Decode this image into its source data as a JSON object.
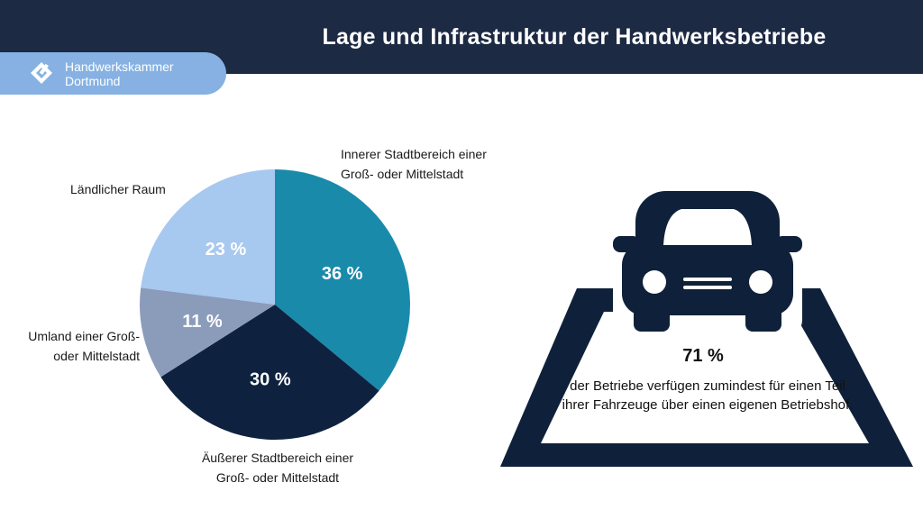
{
  "header": {
    "title": "Lage und Infrastruktur der Handwerksbetriebe"
  },
  "brand": {
    "line1": "Handwerkskammer",
    "line2": "Dortmund"
  },
  "colors": {
    "header_bg": "#1d2a44",
    "brand_bg": "#86b1e2",
    "car": "#0f213a"
  },
  "chart_data": {
    "type": "pie",
    "unit": "%",
    "slices": [
      {
        "label": "Innerer Stadtbereich einer Groß- oder Mittelstadt",
        "label_lines": [
          "Innerer Stadtbereich einer",
          "Groß- oder Mittelstadt"
        ],
        "value": 36,
        "display": "36 %",
        "color": "#1a8aab"
      },
      {
        "label": "Äußerer Stadtbereich einer Groß- oder Mittelstadt",
        "label_lines": [
          "Äußerer Stadtbereich einer",
          "Groß- oder Mittelstadt"
        ],
        "value": 30,
        "display": "30 %",
        "color": "#0e2240"
      },
      {
        "label": "Umland einer Groß- oder Mittelstadt",
        "label_lines": [
          "Umland einer Groß-",
          "oder Mittelstadt"
        ],
        "value": 11,
        "display": "11 %",
        "color": "#8b9cbb"
      },
      {
        "label": "Ländlicher Raum",
        "label_lines": [
          "Ländlicher Raum"
        ],
        "value": 23,
        "display": "23 %",
        "color": "#a7c8ef"
      }
    ]
  },
  "stat": {
    "value": "71 %",
    "text": "der Betriebe verfügen zumindest für einen Teil ihrer Fahrzeuge über einen eigenen Betriebshof.",
    "icon": "car-on-parking-lot-icon"
  }
}
